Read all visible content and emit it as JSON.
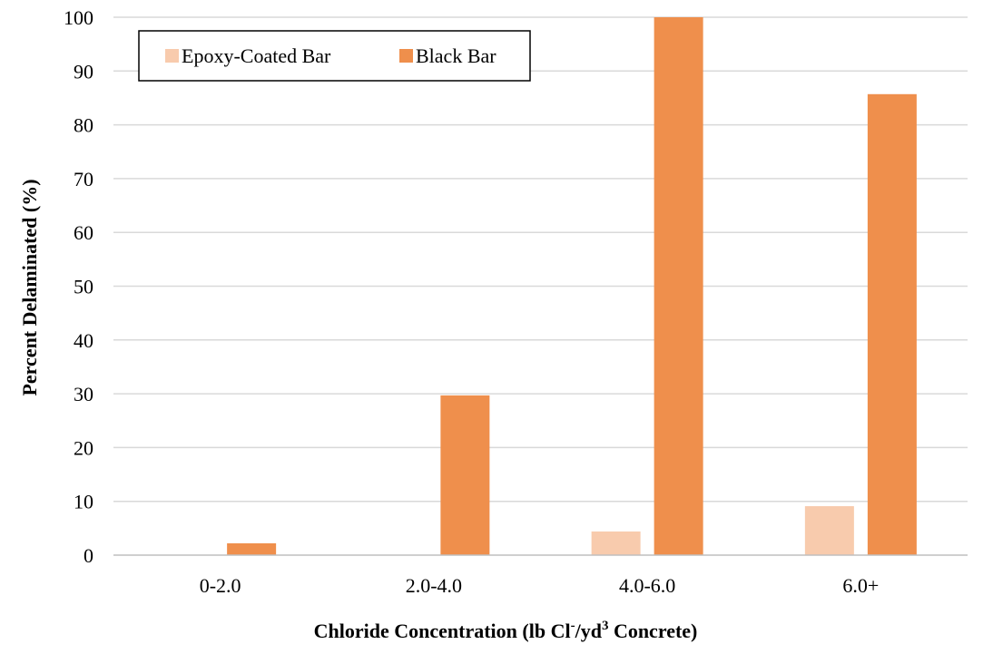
{
  "chart_data": {
    "type": "bar",
    "categories": [
      "0-2.0",
      "2.0-4.0",
      "4.0-6.0",
      "6.0+"
    ],
    "series": [
      {
        "name": "Epoxy-Coated Bar",
        "values": [
          0,
          0,
          4.4,
          9.1
        ],
        "color": "#F8CBAD"
      },
      {
        "name": "Black Bar",
        "values": [
          2.2,
          29.7,
          100,
          85.7
        ],
        "color": "#EF8F4C"
      }
    ],
    "xlabel": {
      "prefix": "Chloride Concentration (lb Cl",
      "sup1": "-",
      "middle": "/yd",
      "sup2": "3",
      "suffix": " Concrete)"
    },
    "ylabel": "Percent Delaminated (%)",
    "ylim": [
      0,
      100
    ],
    "yticks": [
      "0",
      "10",
      "20",
      "30",
      "40",
      "50",
      "60",
      "70",
      "80",
      "90",
      "100"
    ],
    "grid": true,
    "legend_position": "top-left"
  }
}
